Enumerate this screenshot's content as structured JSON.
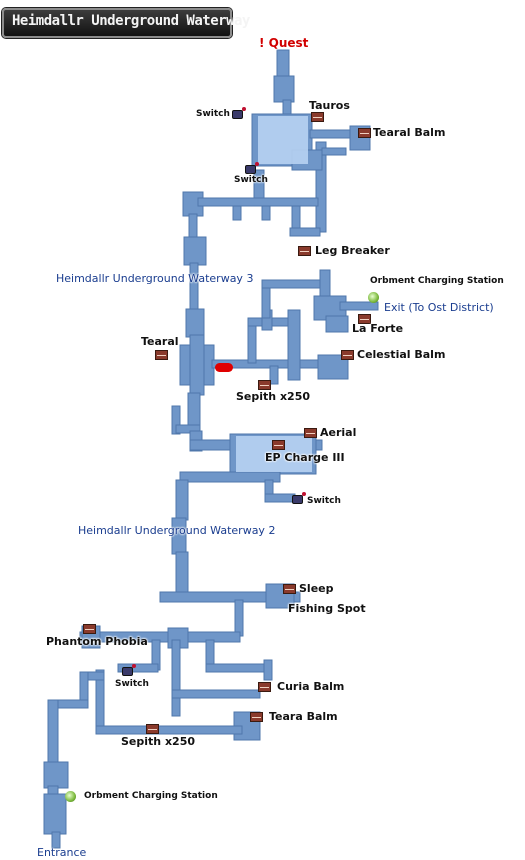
{
  "title": "Heimdallr Underground Waterway",
  "colors": {
    "corridor": "#6f96c8",
    "room_highlight": "#bcd6f4",
    "chest": "#8a3a2c",
    "quest": "#d10000",
    "area_label": "#1a3d8f"
  },
  "labels": {
    "quest": "! Quest",
    "switch_top_left": "Switch",
    "switch_top_mid": "Switch",
    "tauros": "Tauros",
    "tearal_balm_top": "Tearal Balm",
    "leg_breaker": "Leg Breaker",
    "area3": "Heimdallr Underground Waterway 3",
    "orbment_top": "Orbment Charging Station",
    "exit": "Exit (To Ost District)",
    "la_forte": "La Forte",
    "tearal": "Tearal",
    "celestial_balm": "Celestial Balm",
    "sepith_mid": "Sepith x250",
    "aerial": "Aerial",
    "ep_charge": "EP Charge III",
    "switch_mid": "Switch",
    "area2": "Heimdallr Underground Waterway 2",
    "sleep": "Sleep",
    "fishing_spot": "Fishing Spot",
    "phantom_phobia": "Phantom Phobia",
    "switch_low": "Switch",
    "curia_balm": "Curia Balm",
    "teara_balm": "Teara Balm",
    "sepith_low": "Sepith x250",
    "orbment_bottom": "Orbment Charging Station",
    "entrance": "Entrance"
  },
  "icons": [
    "treasure-chest-icon",
    "switch-lever-icon",
    "orbment-charging-icon",
    "quest-marker-icon"
  ]
}
